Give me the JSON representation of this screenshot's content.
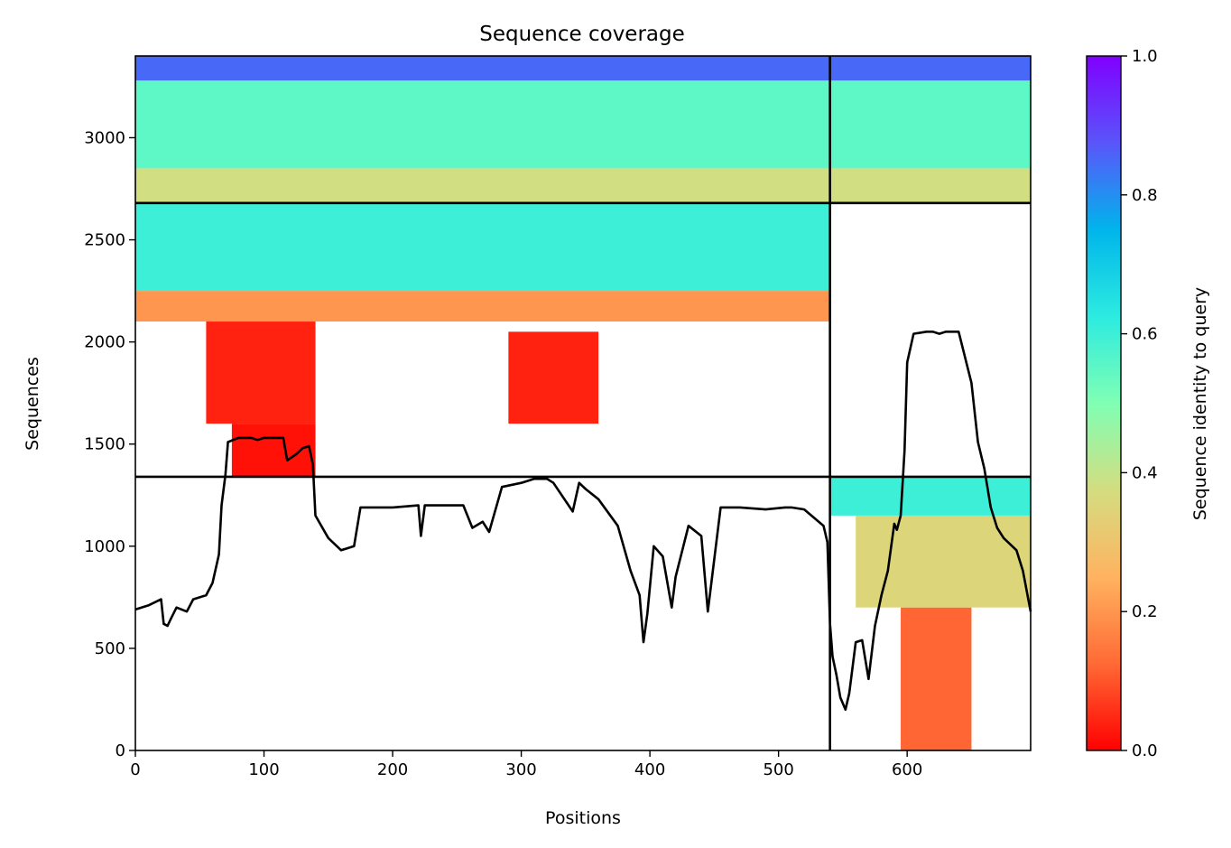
{
  "chart_data": {
    "type": "heatmap",
    "title": "Sequence coverage",
    "xlabel": "Positions",
    "ylabel": "Sequences",
    "xlim": [
      0,
      696
    ],
    "ylim": [
      0,
      3400
    ],
    "x_ticks": [
      0,
      100,
      200,
      300,
      400,
      500,
      600
    ],
    "y_ticks": [
      0,
      500,
      1000,
      1500,
      2000,
      2500,
      3000
    ],
    "x_tick_labels": [
      "0",
      "100",
      "200",
      "300",
      "400",
      "500",
      "600"
    ],
    "y_tick_labels": [
      "0",
      "500",
      "1000",
      "1500",
      "2000",
      "2500",
      "3000"
    ],
    "grid": false,
    "colormap": "rainbow_r",
    "colorbar": {
      "label": "Sequence identity to query",
      "range": [
        0,
        1
      ],
      "ticks": [
        0.0,
        0.2,
        0.4,
        0.6,
        0.8,
        1.0
      ],
      "tick_labels": [
        "0.0",
        "0.2",
        "0.4",
        "0.6",
        "0.8",
        "1.0"
      ],
      "colors": [
        "#ff0000",
        "#ff6a35",
        "#ffb360",
        "#d4dd80",
        "#80ffb4",
        "#2cebe0",
        "#00b5eb",
        "#5a55fa",
        "#8000ff"
      ]
    },
    "chain_boundaries": {
      "x": [
        540
      ],
      "y": [
        1340,
        2680
      ]
    },
    "blocks": [
      {
        "name": "chain1-chain1",
        "x_range": [
          0,
          540
        ],
        "y_range": [
          0,
          1340
        ],
        "rows": []
      },
      {
        "name": "chain2-chain1",
        "x_range": [
          540,
          696
        ],
        "y_range": [
          0,
          1340
        ],
        "rows": [
          {
            "y_range": [
              0,
              700
            ],
            "x_range": [
              595,
              650
            ],
            "identity": 0.12
          },
          {
            "y_range": [
              700,
              1150
            ],
            "x_range": [
              560,
              696
            ],
            "identity": 0.35
          },
          {
            "y_range": [
              1150,
              1340
            ],
            "x_range": [
              540,
              696
            ],
            "identity": 0.6
          }
        ]
      },
      {
        "name": "chain1-chain2",
        "x_range": [
          0,
          540
        ],
        "y_range": [
          1340,
          2680
        ],
        "rows": [
          {
            "y_range": [
              1340,
              1600
            ],
            "x_range": [
              75,
              140
            ],
            "identity": 0.02
          },
          {
            "y_range": [
              1600,
              2100
            ],
            "x_range": [
              55,
              140
            ],
            "identity": 0.04
          },
          {
            "y_range": [
              1600,
              2050
            ],
            "x_range": [
              290,
              360
            ],
            "identity": 0.04
          },
          {
            "y_range": [
              2100,
              2250
            ],
            "x_range": [
              0,
              540
            ],
            "identity": 0.2
          },
          {
            "y_range": [
              2250,
              2680
            ],
            "x_range": [
              0,
              540
            ],
            "identity": 0.6
          }
        ]
      },
      {
        "name": "chain2-chain2",
        "x_range": [
          540,
          696
        ],
        "y_range": [
          1340,
          2680
        ],
        "rows": []
      },
      {
        "name": "chain1-top",
        "x_range": [
          0,
          540
        ],
        "y_range": [
          2680,
          3400
        ],
        "rows": [
          {
            "y_range": [
              2680,
              2850
            ],
            "x_range": [
              0,
              540
            ],
            "identity": 0.38
          },
          {
            "y_range": [
              2850,
              3280
            ],
            "x_range": [
              0,
              540
            ],
            "identity": 0.55
          },
          {
            "y_range": [
              3280,
              3400
            ],
            "x_range": [
              0,
              540
            ],
            "identity": 0.85
          }
        ]
      },
      {
        "name": "chain2-top",
        "x_range": [
          540,
          696
        ],
        "y_range": [
          2680,
          3400
        ],
        "rows": [
          {
            "y_range": [
              2680,
              2850
            ],
            "x_range": [
              540,
              696
            ],
            "identity": 0.38
          },
          {
            "y_range": [
              2850,
              3280
            ],
            "x_range": [
              540,
              696
            ],
            "identity": 0.55
          },
          {
            "y_range": [
              3280,
              3400
            ],
            "x_range": [
              540,
              696
            ],
            "identity": 0.85
          }
        ]
      }
    ],
    "series": [
      {
        "type": "line",
        "color": "#000000",
        "x": [
          0,
          10,
          20,
          22,
          25,
          28,
          32,
          40,
          45,
          55,
          60,
          65,
          67,
          70,
          72,
          80,
          90,
          95,
          100,
          110,
          115,
          118,
          125,
          130,
          135,
          138,
          140,
          150,
          160,
          170,
          175,
          200,
          220,
          222,
          225,
          240,
          255,
          262,
          270,
          275,
          285,
          300,
          310,
          320,
          325,
          340,
          345,
          350,
          360,
          375,
          385,
          392,
          395,
          398,
          403,
          410,
          417,
          420,
          430,
          440,
          445,
          455,
          470,
          490,
          505,
          510,
          520,
          535,
          538,
          540,
          542,
          545,
          548,
          552,
          555,
          560,
          565,
          570,
          575,
          580,
          585,
          590,
          592,
          595,
          598,
          600,
          605,
          615,
          620,
          625,
          630,
          640,
          650,
          655,
          660,
          665,
          670,
          675,
          680,
          685,
          690,
          696
        ],
        "y": [
          690,
          710,
          740,
          620,
          610,
          650,
          700,
          680,
          740,
          760,
          820,
          960,
          1200,
          1350,
          1510,
          1530,
          1530,
          1520,
          1530,
          1530,
          1530,
          1420,
          1450,
          1480,
          1490,
          1400,
          1150,
          1040,
          980,
          1000,
          1190,
          1190,
          1200,
          1050,
          1200,
          1200,
          1200,
          1090,
          1120,
          1070,
          1290,
          1310,
          1330,
          1330,
          1310,
          1170,
          1310,
          1280,
          1230,
          1100,
          880,
          760,
          530,
          670,
          1000,
          950,
          700,
          850,
          1100,
          1050,
          680,
          1190,
          1190,
          1180,
          1190,
          1190,
          1180,
          1100,
          1020,
          620,
          460,
          370,
          260,
          200,
          280,
          530,
          540,
          350,
          610,
          760,
          880,
          1110,
          1080,
          1150,
          1470,
          1900,
          2040,
          2050,
          2050,
          2040,
          2050,
          2050,
          1800,
          1510,
          1380,
          1190,
          1090,
          1040,
          1010,
          980,
          880,
          680
        ]
      }
    ]
  }
}
